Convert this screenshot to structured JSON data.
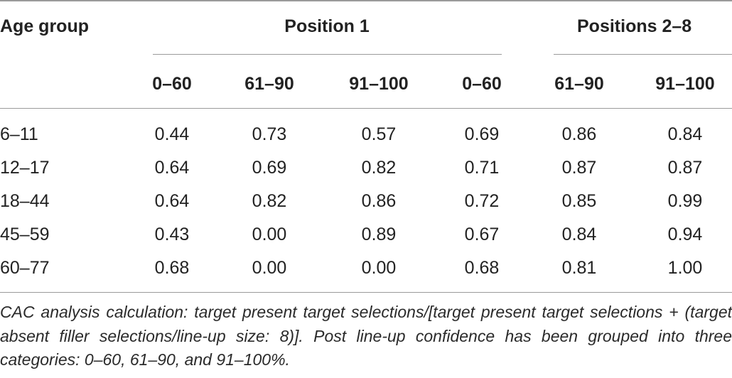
{
  "table": {
    "row_header_label": "Age group",
    "group_headers": [
      "Position 1",
      "Positions 2–8"
    ],
    "sub_headers": [
      "0–60",
      "61–90",
      "91–100",
      "0–60",
      "61–90",
      "91–100"
    ],
    "rows": [
      {
        "age": "6–11",
        "values": [
          "0.44",
          "0.73",
          "0.57",
          "0.69",
          "0.86",
          "0.84"
        ]
      },
      {
        "age": "12–17",
        "values": [
          "0.64",
          "0.69",
          "0.82",
          "0.71",
          "0.87",
          "0.87"
        ]
      },
      {
        "age": "18–44",
        "values": [
          "0.64",
          "0.82",
          "0.86",
          "0.72",
          "0.85",
          "0.99"
        ]
      },
      {
        "age": "45–59",
        "values": [
          "0.43",
          "0.00",
          "0.89",
          "0.67",
          "0.84",
          "0.94"
        ]
      },
      {
        "age": "60–77",
        "values": [
          "0.68",
          "0.00",
          "0.00",
          "0.68",
          "0.81",
          "1.00"
        ]
      }
    ],
    "footnote": "CAC analysis calculation: target present target selections/[target present target selections + (target absent filler selections/line-up size: 8)]. Post line-up confidence has been grouped into three categories: 0–60, 61–90, and 91–100%."
  }
}
